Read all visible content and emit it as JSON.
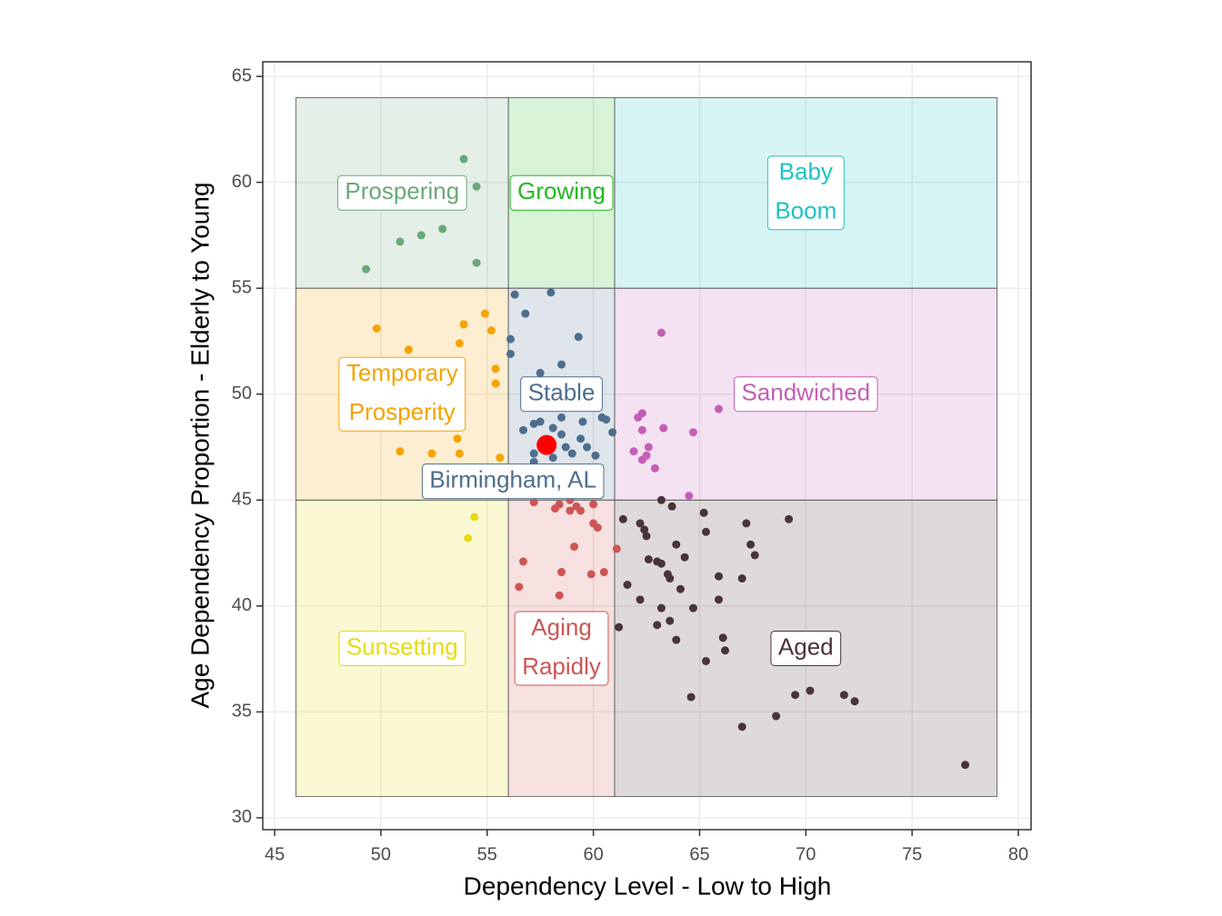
{
  "chart_data": {
    "type": "scatter",
    "xlabel": "Dependency Level - Low to High",
    "ylabel": "Age Dependency Proportion - Elderly to Young",
    "xlim": [
      44.44,
      80.6
    ],
    "ylim": [
      29.44,
      65.69
    ],
    "xticks": [
      45,
      50,
      55,
      60,
      65,
      70,
      75,
      80
    ],
    "yticks": [
      30,
      35,
      40,
      45,
      50,
      55,
      60,
      65
    ],
    "grid": true,
    "series": [
      {
        "label": [
          "Prospering"
        ],
        "color": "#6aa978",
        "xrange": [
          46,
          56
        ],
        "yrange": [
          55,
          64
        ],
        "x": [
          53.9,
          54.5,
          50.9,
          51.9,
          52.9,
          49.3,
          54.5
        ],
        "y": [
          61.1,
          59.8,
          57.2,
          57.5,
          57.8,
          55.9,
          56.2
        ]
      },
      {
        "label": [
          "Growing"
        ],
        "color": "#22b822",
        "xrange": [
          56,
          61
        ],
        "yrange": [
          55,
          64
        ],
        "x": [],
        "y": []
      },
      {
        "label": [
          "Baby",
          "Boom"
        ],
        "color": "#1fc3c3",
        "xrange": [
          61,
          79
        ],
        "yrange": [
          55,
          64
        ],
        "x": [],
        "y": []
      },
      {
        "label": [
          "Temporary",
          "Prosperity"
        ],
        "color": "#f5a300",
        "xrange": [
          46,
          56
        ],
        "yrange": [
          45,
          55
        ],
        "x": [
          49.8,
          51.3,
          53.9,
          54.9,
          55.2,
          53.7,
          55.4,
          55.4,
          50.9,
          52.4,
          53.6,
          53.7,
          55.6
        ],
        "y": [
          53.1,
          52.1,
          53.3,
          53.8,
          53.0,
          52.4,
          51.2,
          50.5,
          47.3,
          47.2,
          47.9,
          47.2,
          47.0
        ]
      },
      {
        "label": [
          "Stable"
        ],
        "color": "#4e6e8e",
        "xrange": [
          56,
          61
        ],
        "yrange": [
          45,
          55
        ],
        "x": [
          56.3,
          58.0,
          56.8,
          56.1,
          59.3,
          58.5,
          56.1,
          57.5,
          56.7,
          57.2,
          57.5,
          58.1,
          58.5,
          58.5,
          59.5,
          60.4,
          60.6,
          59.7,
          59.4,
          60.9,
          58.7,
          59.0,
          57.2,
          60.1,
          58.1,
          57.2
        ],
        "y": [
          54.7,
          54.8,
          53.8,
          52.6,
          52.7,
          51.4,
          51.9,
          51.0,
          48.3,
          48.6,
          48.7,
          48.4,
          48.1,
          48.9,
          48.7,
          48.9,
          48.8,
          47.5,
          47.9,
          48.2,
          47.5,
          47.2,
          47.2,
          47.1,
          47.0,
          46.8
        ]
      },
      {
        "label": [
          "Sandwiched"
        ],
        "color": "#c25eb5",
        "xrange": [
          61,
          79
        ],
        "yrange": [
          45,
          55
        ],
        "x": [
          63.2,
          65.9,
          62.1,
          62.3,
          63.3,
          62.3,
          64.7,
          61.9,
          62.6,
          62.5,
          62.3,
          62.9,
          64.5
        ],
        "y": [
          52.9,
          49.3,
          48.9,
          49.1,
          48.4,
          48.3,
          48.2,
          47.3,
          47.5,
          47.1,
          46.9,
          46.5,
          45.2
        ]
      },
      {
        "label": [
          "Sunsetting"
        ],
        "color": "#e6dc10",
        "xrange": [
          46,
          56
        ],
        "yrange": [
          31,
          45
        ],
        "x": [
          54.4,
          54.1
        ],
        "y": [
          44.2,
          43.2
        ]
      },
      {
        "label": [
          "Aging",
          "Rapidly"
        ],
        "color": "#cd5555",
        "xrange": [
          56,
          61
        ],
        "yrange": [
          31,
          45
        ],
        "x": [
          57.2,
          58.2,
          58.4,
          58.9,
          58.9,
          59.4,
          60.0,
          60.0,
          60.2,
          61.1,
          59.1,
          56.7,
          58.5,
          59.9,
          60.5,
          56.5,
          58.4,
          59.2
        ],
        "y": [
          44.9,
          44.6,
          44.8,
          45.0,
          44.5,
          44.5,
          44.8,
          43.9,
          43.7,
          42.7,
          42.8,
          42.1,
          41.6,
          41.5,
          41.6,
          40.9,
          40.5,
          44.7
        ]
      },
      {
        "label": [
          "Aged"
        ],
        "color": "#4a3438",
        "xrange": [
          61,
          79
        ],
        "yrange": [
          31,
          45
        ],
        "x": [
          61.4,
          62.2,
          62.4,
          61.6,
          61.2,
          62.5,
          62.6,
          63.2,
          63.7,
          65.2,
          65.3,
          63.9,
          64.3,
          63.0,
          63.2,
          63.5,
          63.6,
          64.1,
          62.2,
          63.2,
          63.0,
          63.6,
          63.9,
          64.7,
          65.9,
          66.1,
          65.3,
          64.6,
          65.9,
          67.0,
          67.2,
          67.4,
          67.6,
          69.2,
          66.2,
          67.0,
          68.6,
          69.5,
          70.2,
          71.8,
          72.3,
          77.5
        ],
        "y": [
          44.1,
          43.9,
          43.6,
          41.0,
          39.0,
          43.3,
          42.2,
          45.0,
          44.7,
          44.4,
          43.5,
          42.9,
          42.3,
          42.1,
          42.0,
          41.5,
          41.3,
          40.8,
          40.3,
          39.9,
          39.1,
          39.3,
          38.4,
          39.9,
          40.3,
          38.5,
          37.4,
          35.7,
          41.4,
          41.3,
          43.9,
          42.9,
          42.4,
          44.1,
          37.9,
          34.3,
          34.8,
          35.8,
          36.0,
          35.8,
          35.5,
          32.5
        ]
      }
    ],
    "highlight": {
      "name": "Birmingham, AL",
      "x": 57.8,
      "y": 47.6,
      "color": "#ff0000",
      "label_color": "#4e6e8e"
    }
  }
}
